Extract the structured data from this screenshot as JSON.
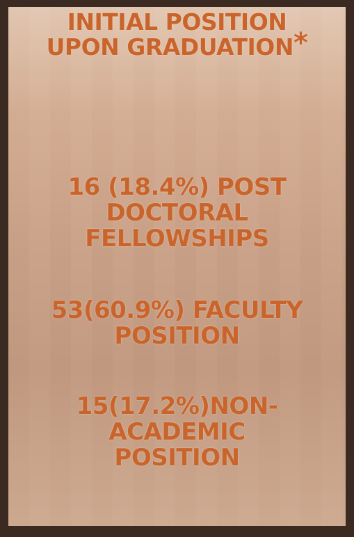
{
  "header": {
    "title_lines": [
      "INITIAL POSITION",
      "UPON GRADUATION"
    ],
    "asterisk": "*"
  },
  "items": [
    {
      "lines": [
        "16 (18.4%) POST",
        "DOCTORAL",
        "FELLOWSHIPS"
      ]
    },
    {
      "lines": [
        "53(60.9%) FACULTY",
        "POSITION"
      ]
    },
    {
      "lines": [
        "15(17.2%)NON-",
        "ACADEMIC",
        "POSITION"
      ]
    }
  ]
}
